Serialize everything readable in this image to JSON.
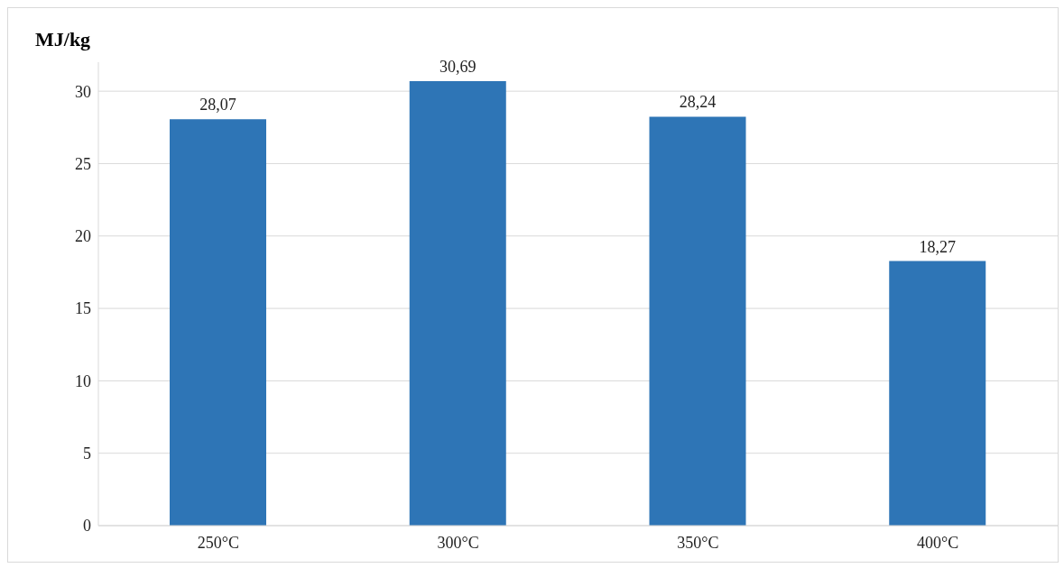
{
  "chart_data": {
    "type": "bar",
    "ylabel": "MJ/kg",
    "categories": [
      "250°C",
      "300°C",
      "350°C",
      "400°C"
    ],
    "series": [
      {
        "color": "#2e75b6",
        "values": [
          28.07,
          30.69,
          28.24,
          18.27
        ],
        "value_labels": [
          "28,07",
          "30,69",
          "28,24",
          "18,27"
        ]
      }
    ],
    "ylim": [
      0,
      32
    ],
    "yticks": [
      0,
      5,
      10,
      15,
      20,
      25,
      30
    ],
    "grid": "y"
  }
}
